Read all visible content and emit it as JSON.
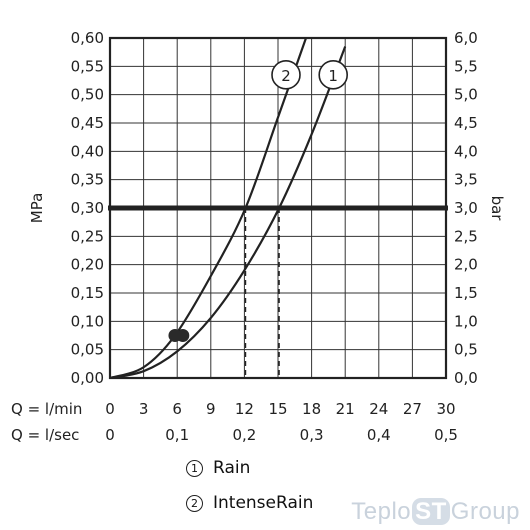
{
  "chart_data": {
    "type": "line",
    "ylabel": "MPa",
    "y2label": "bar",
    "ylim": [
      0,
      0.6
    ],
    "y2lim": [
      0,
      6.0
    ],
    "xlim": [
      0,
      30
    ],
    "grid": true,
    "y_ticks": [
      "0,00",
      "0,05",
      "0,10",
      "0,15",
      "0,20",
      "0,25",
      "0,30",
      "0,35",
      "0,40",
      "0,45",
      "0,50",
      "0,55",
      "0,60"
    ],
    "y2_ticks": [
      "0,0",
      "0,5",
      "1,0",
      "1,5",
      "2,0",
      "2,5",
      "3,0",
      "3,5",
      "4,0",
      "4,5",
      "5,0",
      "5,5",
      "6,0"
    ],
    "x_label_lmin": "Q = l/min",
    "x_ticks_lmin": [
      "0",
      "3",
      "6",
      "9",
      "12",
      "15",
      "18",
      "21",
      "24",
      "27",
      "30"
    ],
    "x_label_lsec": "Q = l/sec",
    "x_ticks_lsec": [
      {
        "label": "0",
        "lmin": 0
      },
      {
        "label": "0,1",
        "lmin": 6
      },
      {
        "label": "0,2",
        "lmin": 12
      },
      {
        "label": "0,3",
        "lmin": 18
      },
      {
        "label": "0,4",
        "lmin": 24
      },
      {
        "label": "0,5",
        "lmin": 30
      }
    ],
    "reference_line": {
      "y": 0.3
    },
    "series": [
      {
        "name": "Rain",
        "marker": "1",
        "x": [
          0,
          3,
          6,
          9,
          12,
          15.1,
          18,
          21
        ],
        "y": [
          0,
          0.012,
          0.047,
          0.106,
          0.19,
          0.3,
          0.43,
          0.585
        ],
        "flow_at_reference": 15.1,
        "min_point": {
          "x": 6.5,
          "y": 0.075
        }
      },
      {
        "name": "IntenseRain",
        "marker": "2",
        "x": [
          0,
          3,
          5.8,
          9,
          12.1,
          15,
          17.5
        ],
        "y": [
          0,
          0.019,
          0.075,
          0.18,
          0.3,
          0.46,
          0.6
        ],
        "flow_at_reference": 12.1,
        "min_point": {
          "x": 5.8,
          "y": 0.075
        }
      }
    ]
  },
  "legend": [
    {
      "num": "1",
      "label": "Rain"
    },
    {
      "num": "2",
      "label": "IntenseRain"
    }
  ],
  "watermark": {
    "prefix": "Teplo",
    "mid": "ST",
    "suffix": "Group"
  }
}
